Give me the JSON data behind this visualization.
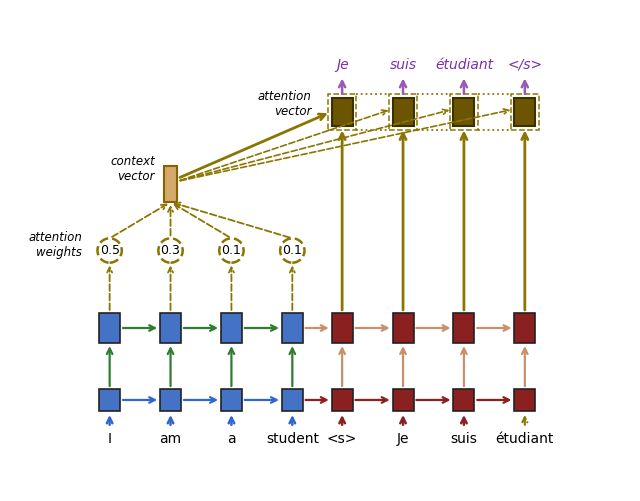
{
  "encoder_words": [
    "I",
    "am",
    "a",
    "student"
  ],
  "decoder_words": [
    "<s>",
    "Je",
    "suis",
    "étudiant"
  ],
  "output_words": [
    "Je",
    "suis",
    "étudiant",
    "</s>"
  ],
  "attention_weights": [
    "0.5",
    "0.3",
    "0.1",
    "0.1"
  ],
  "blue_box": "#4472C4",
  "dark_red_box": "#8B2020",
  "dark_brown_box": "#6B5500",
  "context_box": "#D4A96A",
  "blue_arrow": "#3366CC",
  "green_arrow": "#2E7D32",
  "dark_red_arrow": "#8B2020",
  "salmon_arrow": "#C8906A",
  "olive_arrow": "#7A6B00",
  "purple_arrow": "#9B59B6",
  "attn_color": "#8B7500",
  "label_fontsize": 8.5,
  "word_fontsize": 10,
  "attn_num_fontsize": 9
}
